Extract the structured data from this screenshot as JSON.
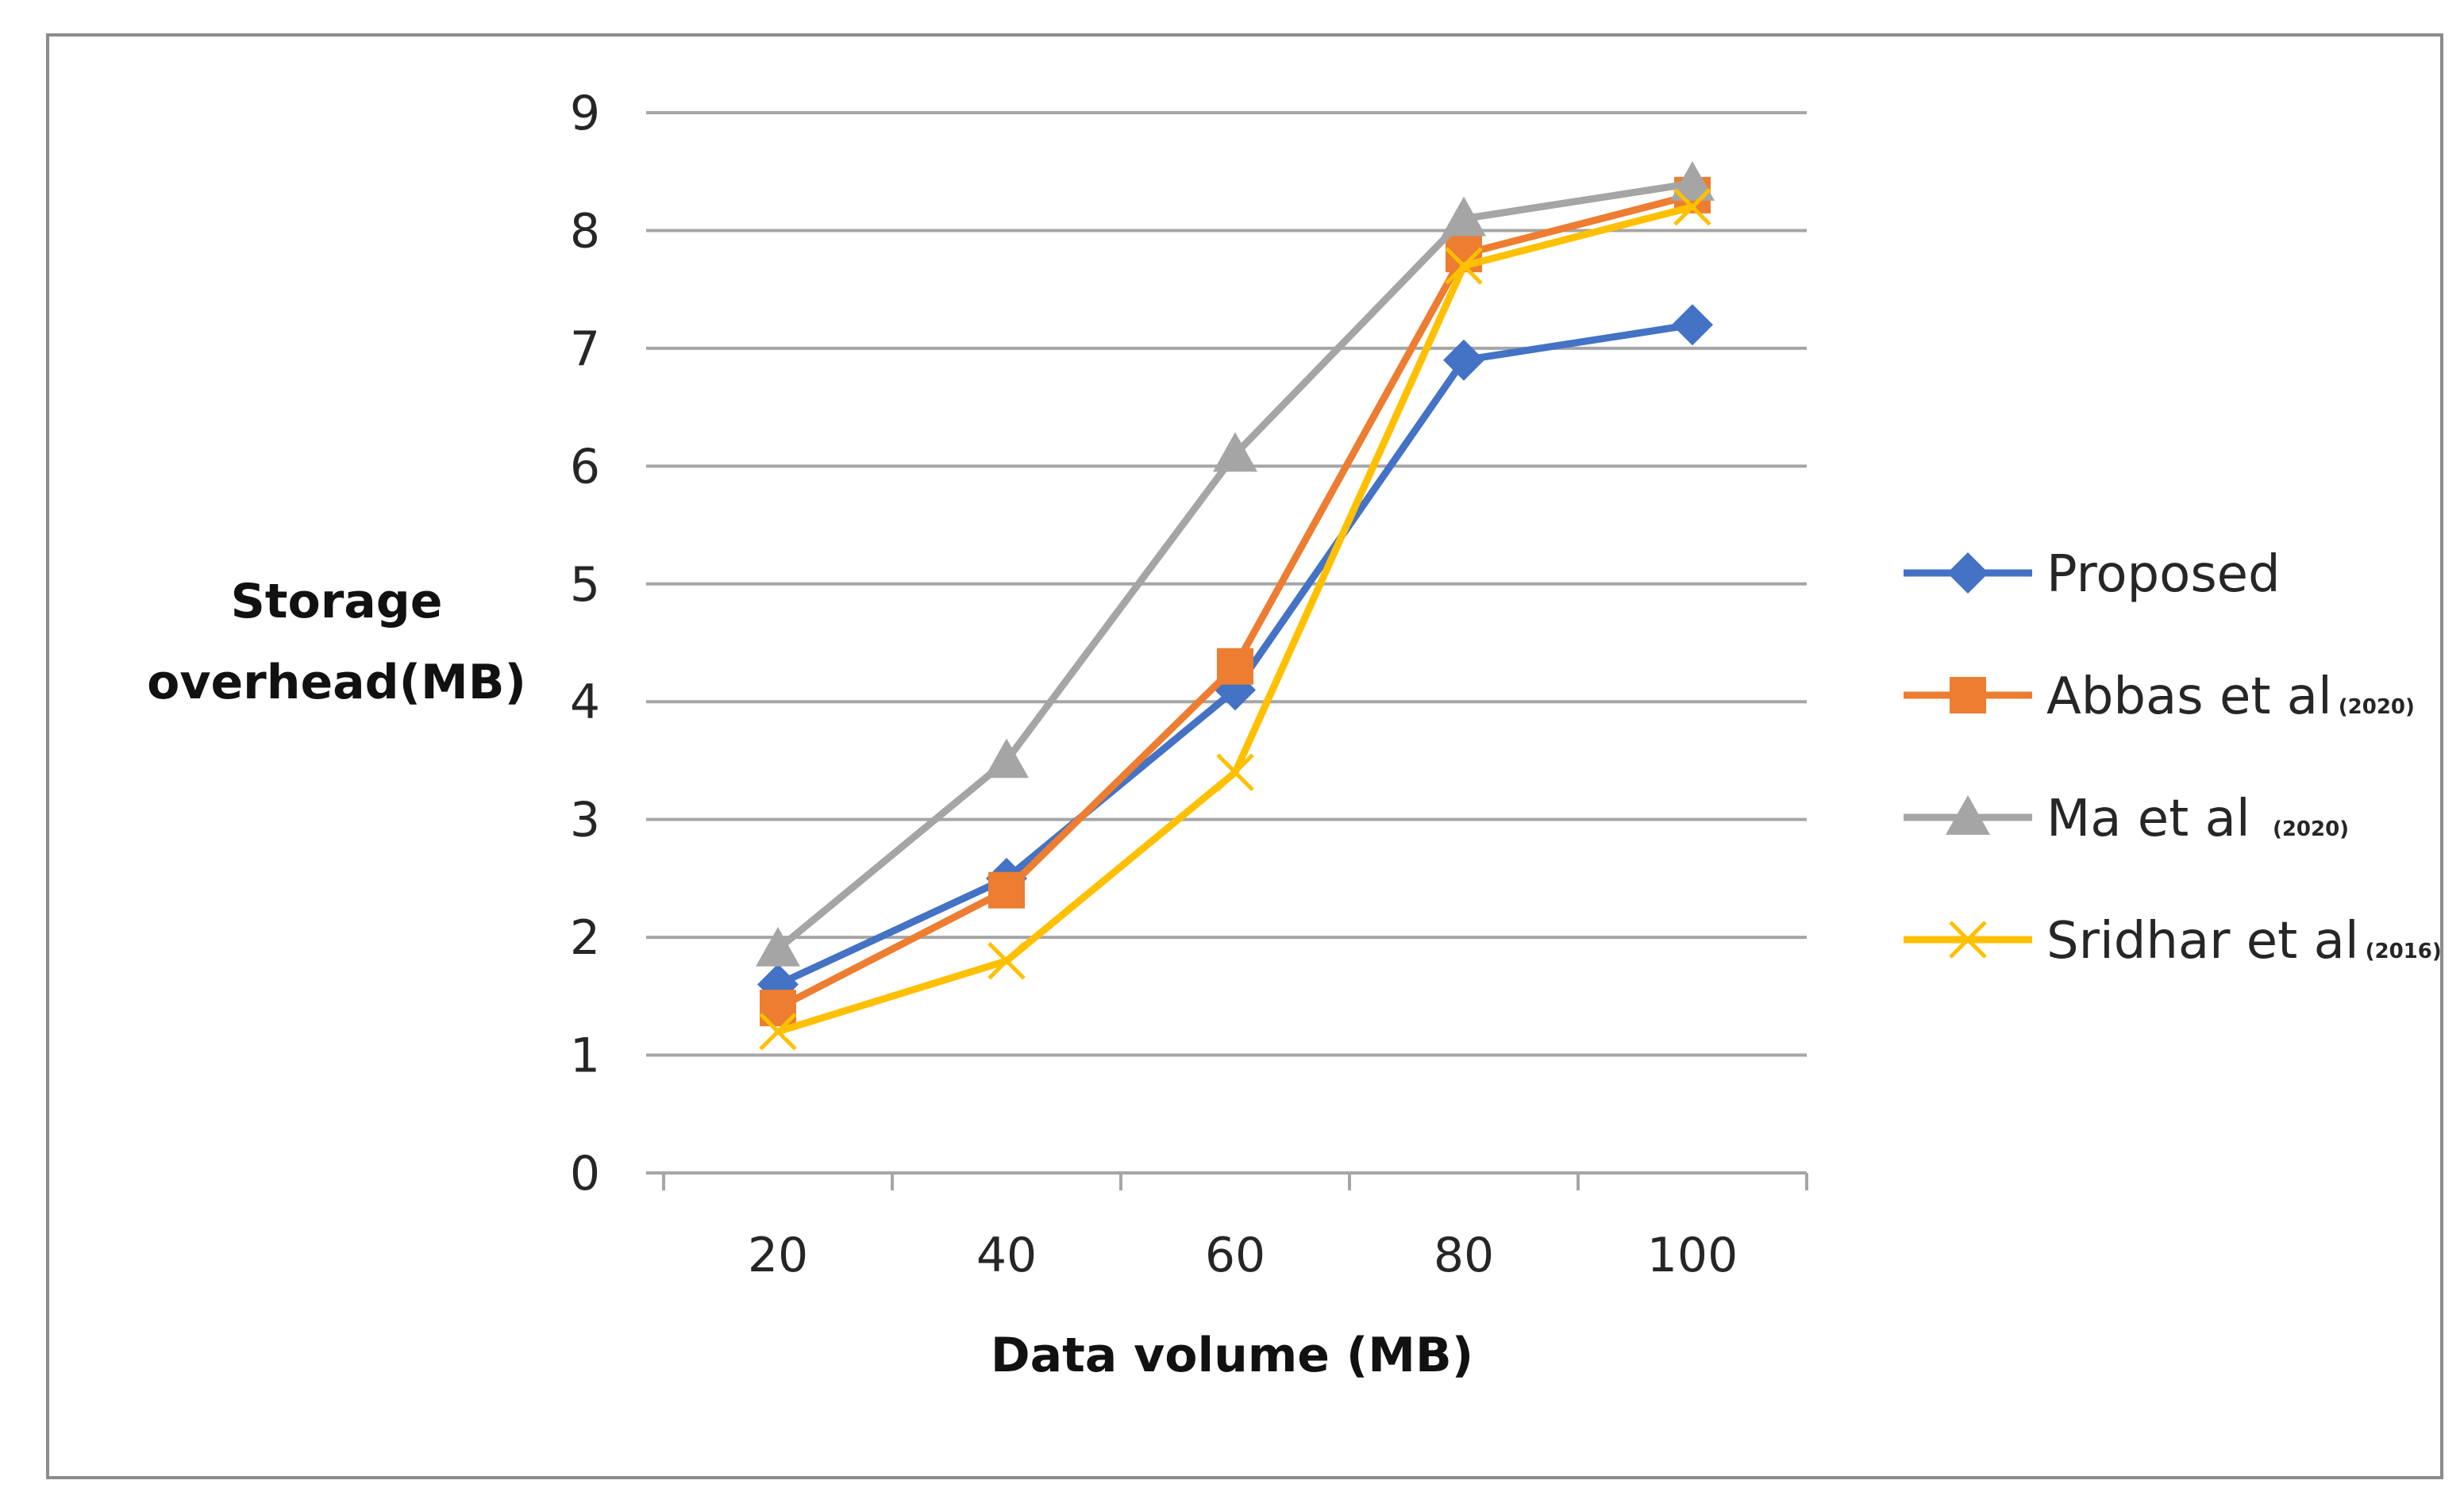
{
  "chart_data": {
    "type": "line",
    "title": "",
    "xlabel": "Data volume (MB)",
    "ylabel_lines": [
      "Storage",
      "overhead(MB)"
    ],
    "categories": [
      "20",
      "40",
      "60",
      "80",
      "100"
    ],
    "ylim": [
      0,
      9
    ],
    "yticks": [
      "0",
      "1",
      "2",
      "3",
      "4",
      "5",
      "6",
      "7",
      "8",
      "9"
    ],
    "grid": true,
    "legend_position": "right",
    "series": [
      {
        "name": "Proposed",
        "sup": "",
        "color": "#4472c4",
        "marker": "diamond",
        "values": [
          1.6,
          2.5,
          4.1,
          6.9,
          7.2
        ]
      },
      {
        "name": "Abbas et al",
        "sup": "(2020)",
        "color": "#ed7d31",
        "marker": "square",
        "values": [
          1.4,
          2.4,
          4.3,
          7.8,
          8.3
        ]
      },
      {
        "name": "Ma et al ",
        "sup": "(2020)",
        "color": "#a5a5a5",
        "marker": "triangle",
        "values": [
          1.9,
          3.5,
          6.1,
          8.1,
          8.4
        ]
      },
      {
        "name": "Sridhar et al",
        "sup": "(2016)",
        "color": "#ffc000",
        "marker": "x",
        "values": [
          1.2,
          1.8,
          3.4,
          7.7,
          8.2
        ]
      }
    ]
  }
}
